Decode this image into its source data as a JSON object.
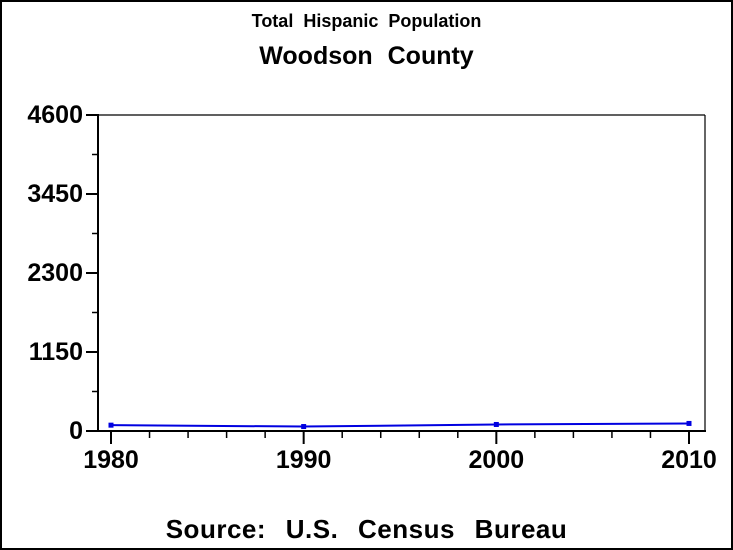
{
  "chart": {
    "title": "Total Hispanic Population",
    "subtitle": "Woodson County",
    "footnote": "Source: U.S. Census Bureau"
  },
  "chart_data": {
    "type": "line",
    "title": "Total Hispanic Population",
    "subtitle": "Woodson County",
    "footnote": "Source: U.S. Census Bureau",
    "x": [
      1980,
      1990,
      2000,
      2010
    ],
    "series": [
      {
        "name": "Total Hispanic Population",
        "values": [
          85,
          65,
          95,
          110
        ],
        "color": "#0000e0",
        "marker": "square"
      }
    ],
    "xlabel": "",
    "ylabel": "",
    "xlim": [
      1980,
      2010
    ],
    "ylim": [
      0,
      4600
    ],
    "y_major_ticks": [
      0,
      1150,
      2300,
      3450,
      4600
    ],
    "y_minor_ticks": [
      575,
      1725,
      2875,
      4025
    ],
    "x_major_ticks": [
      1980,
      1990,
      2000,
      2010
    ],
    "x_minor_ticks": [
      1982,
      1984,
      1986,
      1988,
      1992,
      1994,
      1996,
      1998,
      2002,
      2004,
      2006,
      2008
    ],
    "grid": false,
    "legend": false,
    "axis_color": "#000000",
    "background_color": "#ffffff",
    "frame_border_color": "#000000"
  }
}
